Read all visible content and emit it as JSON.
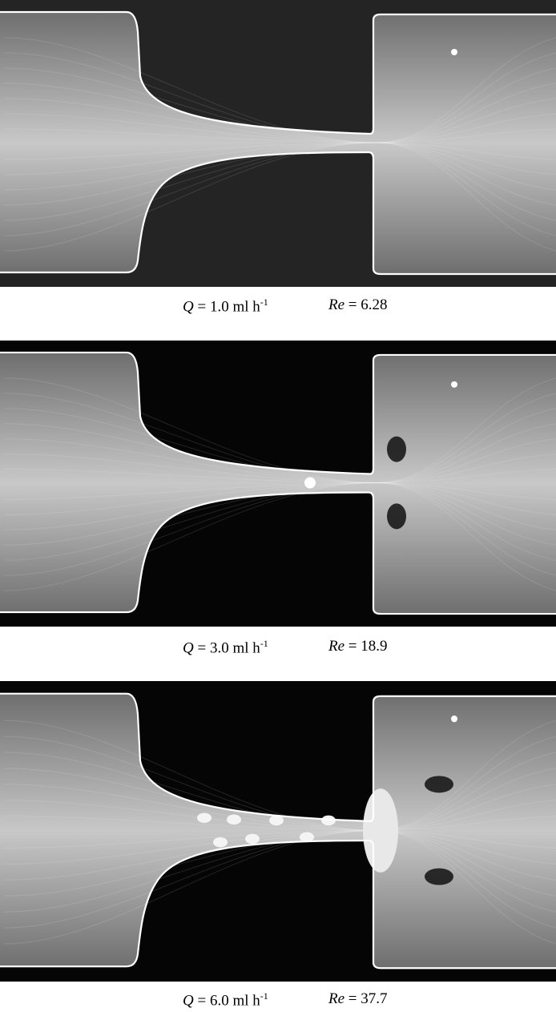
{
  "panels": [
    {
      "q_symbol": "Q",
      "q_text": "= 1.0 ml h",
      "q_exp": "-1",
      "re_symbol": "Re",
      "re_text": "= 6.28"
    },
    {
      "q_symbol": "Q",
      "q_text": "= 3.0 ml h",
      "q_exp": "-1",
      "re_symbol": "Re",
      "re_text": "= 18.9"
    },
    {
      "q_symbol": "Q",
      "q_text": "= 6.0 ml h",
      "q_exp": "-1",
      "re_symbol": "Re",
      "re_text": "= 37.7"
    }
  ]
}
